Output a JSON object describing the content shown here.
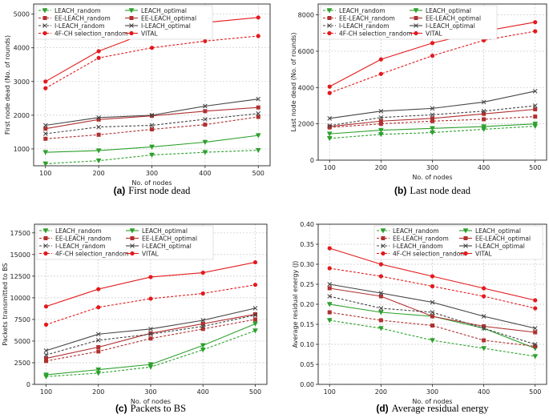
{
  "chart_data": [
    {
      "type": "line",
      "panel": "a",
      "caption_letter": "(a)",
      "caption_text": "First node dead",
      "title": "",
      "xlabel": "No. of nodes",
      "ylabel": "First node dead (No. of rounds)",
      "x": [
        100,
        200,
        300,
        400,
        500
      ],
      "xlim": [
        100,
        500
      ],
      "ylim": [
        500,
        5300
      ],
      "xticks": [
        100,
        200,
        300,
        400,
        500
      ],
      "yticks": [
        1000,
        2000,
        3000,
        4000,
        5000
      ],
      "grid": true,
      "legend_columns": 2,
      "legend_location": "top-left",
      "series": [
        {
          "name": "LEACH_random",
          "color": "#2ca02c",
          "style": "dashed",
          "marker": "triangle-down",
          "values": [
            560,
            650,
            820,
            900,
            960
          ]
        },
        {
          "name": "LEACH_optimal",
          "color": "#2ca02c",
          "style": "solid",
          "marker": "triangle-down",
          "values": [
            900,
            950,
            1060,
            1200,
            1400
          ]
        },
        {
          "name": "EE-LEACH_random",
          "color": "#b03030",
          "style": "dashed",
          "marker": "square",
          "values": [
            1300,
            1420,
            1580,
            1720,
            1950
          ]
        },
        {
          "name": "EE-LEACH_optimal",
          "color": "#b03030",
          "style": "solid",
          "marker": "square",
          "values": [
            1600,
            1870,
            1980,
            2120,
            2230
          ]
        },
        {
          "name": "I-LEACH_random",
          "color": "#444444",
          "style": "dashed",
          "marker": "x",
          "values": [
            1450,
            1650,
            1700,
            1880,
            2050
          ]
        },
        {
          "name": "I-LEACH_optimal",
          "color": "#444444",
          "style": "solid",
          "marker": "x",
          "values": [
            1700,
            1930,
            2000,
            2270,
            2480
          ]
        },
        {
          "name": "4F-CH selection_random",
          "color": "#e3191c",
          "style": "dashed",
          "marker": "circle",
          "values": [
            2800,
            3700,
            4000,
            4200,
            4350
          ]
        },
        {
          "name": "VITAL",
          "color": "#e3191c",
          "style": "solid",
          "marker": "circle",
          "values": [
            3000,
            3900,
            4500,
            4750,
            4900
          ]
        }
      ]
    },
    {
      "type": "line",
      "panel": "b",
      "caption_letter": "(b)",
      "caption_text": "Last node dead",
      "title": "",
      "xlabel": "No. of nodes",
      "ylabel": "Last node dead (No. of rounds)",
      "x": [
        100,
        200,
        300,
        400,
        500
      ],
      "xlim": [
        100,
        500
      ],
      "ylim": [
        0,
        8600
      ],
      "xticks": [
        100,
        200,
        300,
        400,
        500
      ],
      "yticks": [
        0,
        2000,
        4000,
        6000,
        8000
      ],
      "grid": true,
      "legend_columns": 2,
      "legend_location": "top-left",
      "series": [
        {
          "name": "LEACH_random",
          "color": "#2ca02c",
          "style": "dashed",
          "marker": "triangle-down",
          "values": [
            1200,
            1420,
            1520,
            1700,
            1870
          ]
        },
        {
          "name": "LEACH_optimal",
          "color": "#2ca02c",
          "style": "solid",
          "marker": "triangle-down",
          "values": [
            1450,
            1650,
            1750,
            1850,
            2000
          ]
        },
        {
          "name": "EE-LEACH_random",
          "color": "#b03030",
          "style": "dashed",
          "marker": "square",
          "values": [
            1800,
            2000,
            2150,
            2250,
            2400
          ]
        },
        {
          "name": "EE-LEACH_optimal",
          "color": "#b03030",
          "style": "solid",
          "marker": "square",
          "values": [
            1850,
            2150,
            2300,
            2550,
            2800
          ]
        },
        {
          "name": "I-LEACH_random",
          "color": "#444444",
          "style": "dashed",
          "marker": "x",
          "values": [
            1900,
            2350,
            2500,
            2700,
            3000
          ]
        },
        {
          "name": "I-LEACH_optimal",
          "color": "#444444",
          "style": "solid",
          "marker": "x",
          "values": [
            2300,
            2700,
            2850,
            3200,
            3800
          ]
        },
        {
          "name": "4F-CH selection_random",
          "color": "#e3191c",
          "style": "dashed",
          "marker": "circle",
          "values": [
            3700,
            4750,
            5750,
            6600,
            7100
          ]
        },
        {
          "name": "VITAL",
          "color": "#e3191c",
          "style": "solid",
          "marker": "circle",
          "values": [
            4050,
            5550,
            6450,
            7100,
            7600
          ]
        }
      ]
    },
    {
      "type": "line",
      "panel": "c",
      "caption_letter": "(c)",
      "caption_text": "Packets to BS",
      "title": "",
      "xlabel": "No. of nodes",
      "ylabel": "Packets transmitted to BS",
      "x": [
        100,
        200,
        300,
        400,
        500
      ],
      "xlim": [
        100,
        500
      ],
      "ylim": [
        0,
        18500
      ],
      "xticks": [
        100,
        200,
        300,
        400,
        500
      ],
      "yticks": [
        0,
        2500,
        5000,
        7500,
        10000,
        12500,
        15000,
        17500
      ],
      "grid": true,
      "legend_columns": 2,
      "legend_location": "top-left",
      "series": [
        {
          "name": "LEACH_random",
          "color": "#2ca02c",
          "style": "dashed",
          "marker": "triangle-down",
          "values": [
            900,
            1300,
            2000,
            4000,
            6200
          ]
        },
        {
          "name": "LEACH_optimal",
          "color": "#2ca02c",
          "style": "solid",
          "marker": "triangle-down",
          "values": [
            1100,
            1700,
            2300,
            4500,
            7000
          ]
        },
        {
          "name": "EE-LEACH_random",
          "color": "#b03030",
          "style": "dashed",
          "marker": "square",
          "values": [
            2700,
            3800,
            5300,
            6400,
            7500
          ]
        },
        {
          "name": "EE-LEACH_optimal",
          "color": "#b03030",
          "style": "solid",
          "marker": "square",
          "values": [
            3000,
            4300,
            5900,
            7000,
            8100
          ]
        },
        {
          "name": "I-LEACH_random",
          "color": "#444444",
          "style": "dashed",
          "marker": "x",
          "values": [
            3400,
            5100,
            5800,
            6700,
            8000
          ]
        },
        {
          "name": "I-LEACH_optimal",
          "color": "#444444",
          "style": "solid",
          "marker": "x",
          "values": [
            3900,
            5800,
            6400,
            7400,
            8800
          ]
        },
        {
          "name": "4F-CH selection_random",
          "color": "#e3191c",
          "style": "dashed",
          "marker": "circle",
          "values": [
            6900,
            8900,
            9900,
            10500,
            11500
          ]
        },
        {
          "name": "VITAL",
          "color": "#e3191c",
          "style": "solid",
          "marker": "circle",
          "values": [
            9000,
            11000,
            12400,
            12900,
            14100
          ]
        }
      ]
    },
    {
      "type": "line",
      "panel": "d",
      "caption_letter": "(d)",
      "caption_text": "Average residual energy",
      "title": "",
      "xlabel": "No. of nodes",
      "ylabel": "Average residual energy (J)",
      "x": [
        100,
        200,
        300,
        400,
        500
      ],
      "xlim": [
        100,
        500
      ],
      "ylim": [
        0,
        0.4
      ],
      "xticks": [
        100,
        200,
        300,
        400,
        500
      ],
      "yticks": [
        0.0,
        0.05,
        0.1,
        0.15,
        0.2,
        0.25,
        0.3,
        0.35,
        0.4
      ],
      "ytick_labels": [
        "0.00",
        "0.05",
        "0.10",
        "0.15",
        "0.20",
        "0.25",
        "0.30",
        "0.35",
        "0.40"
      ],
      "grid": true,
      "legend_columns": 2,
      "legend_location": "top-right",
      "series": [
        {
          "name": "LEACH_random",
          "color": "#2ca02c",
          "style": "dashed",
          "marker": "triangle-down",
          "values": [
            0.16,
            0.14,
            0.11,
            0.09,
            0.07
          ]
        },
        {
          "name": "LEACH_optimal",
          "color": "#2ca02c",
          "style": "solid",
          "marker": "triangle-down",
          "values": [
            0.2,
            0.18,
            0.17,
            0.14,
            0.09
          ]
        },
        {
          "name": "EE-LEACH_random",
          "color": "#b03030",
          "style": "dashed",
          "marker": "square",
          "values": [
            0.18,
            0.16,
            0.147,
            0.11,
            0.095
          ]
        },
        {
          "name": "EE-LEACH_optimal",
          "color": "#b03030",
          "style": "solid",
          "marker": "square",
          "values": [
            0.24,
            0.22,
            0.17,
            0.145,
            0.13
          ]
        },
        {
          "name": "I-LEACH_random",
          "color": "#444444",
          "style": "dashed",
          "marker": "x",
          "values": [
            0.22,
            0.19,
            0.18,
            0.14,
            0.1
          ]
        },
        {
          "name": "I-LEACH_optimal",
          "color": "#444444",
          "style": "solid",
          "marker": "x",
          "values": [
            0.25,
            0.228,
            0.205,
            0.17,
            0.14
          ]
        },
        {
          "name": "4F-CH selection_random",
          "color": "#e3191c",
          "style": "dashed",
          "marker": "circle",
          "values": [
            0.29,
            0.27,
            0.245,
            0.22,
            0.19
          ]
        },
        {
          "name": "VITAL",
          "color": "#e3191c",
          "style": "solid",
          "marker": "circle",
          "values": [
            0.34,
            0.3,
            0.27,
            0.24,
            0.21
          ]
        }
      ]
    }
  ]
}
